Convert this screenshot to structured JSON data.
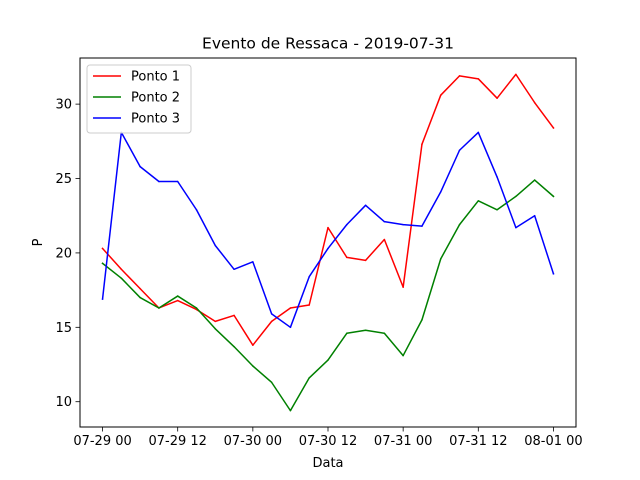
{
  "chart_data": {
    "type": "line",
    "title": "Evento de Ressaca - 2019-07-31",
    "xlabel": "Data",
    "ylabel": "P",
    "x": [
      "2019-07-29 00:00",
      "2019-07-29 03:00",
      "2019-07-29 06:00",
      "2019-07-29 09:00",
      "2019-07-29 12:00",
      "2019-07-29 15:00",
      "2019-07-29 18:00",
      "2019-07-29 21:00",
      "2019-07-30 00:00",
      "2019-07-30 03:00",
      "2019-07-30 06:00",
      "2019-07-30 09:00",
      "2019-07-30 12:00",
      "2019-07-30 15:00",
      "2019-07-30 18:00",
      "2019-07-30 21:00",
      "2019-07-31 00:00",
      "2019-07-31 03:00",
      "2019-07-31 06:00",
      "2019-07-31 09:00",
      "2019-07-31 12:00",
      "2019-07-31 15:00",
      "2019-07-31 18:00",
      "2019-07-31 21:00",
      "2019-08-01 00:00"
    ],
    "xlim": [
      "2019-07-28 20:24",
      "2019-08-01 03:36"
    ],
    "ylim": [
      8.3,
      33.1
    ],
    "xticks": [
      "2019-07-29 00:00",
      "2019-07-29 12:00",
      "2019-07-30 00:00",
      "2019-07-30 12:00",
      "2019-07-31 00:00",
      "2019-07-31 12:00",
      "2019-08-01 00:00"
    ],
    "xtick_labels": [
      "07-29 00",
      "07-29 12",
      "07-30 00",
      "07-30 12",
      "07-31 00",
      "07-31 12",
      "08-01 00"
    ],
    "yticks": [
      10,
      15,
      20,
      25,
      30
    ],
    "ytick_labels": [
      "10",
      "15",
      "20",
      "25",
      "30"
    ],
    "grid": false,
    "legend_position": "top-left",
    "series": [
      {
        "name": "Ponto 1",
        "color": "#ff0000",
        "values": [
          20.3,
          18.9,
          17.6,
          16.3,
          16.8,
          16.2,
          15.4,
          15.8,
          13.8,
          15.4,
          16.3,
          16.5,
          21.7,
          19.7,
          19.5,
          20.9,
          17.7,
          27.3,
          30.6,
          31.9,
          31.7,
          30.4,
          32.0,
          30.1,
          28.4
        ]
      },
      {
        "name": "Ponto 2",
        "color": "#008000",
        "values": [
          19.3,
          18.3,
          17.0,
          16.3,
          17.1,
          16.3,
          14.9,
          13.7,
          12.4,
          11.3,
          9.4,
          11.6,
          12.8,
          14.6,
          14.8,
          14.6,
          13.1,
          15.5,
          19.6,
          21.9,
          23.5,
          22.9,
          23.8,
          24.9,
          23.8
        ]
      },
      {
        "name": "Ponto 3",
        "color": "#0000ff",
        "values": [
          16.9,
          28.1,
          25.8,
          24.8,
          24.8,
          22.9,
          20.5,
          18.9,
          19.4,
          15.9,
          15.0,
          18.4,
          20.3,
          21.9,
          23.2,
          22.1,
          21.9,
          21.8,
          24.1,
          26.9,
          28.1,
          25.1,
          21.7,
          22.5,
          18.6
        ]
      }
    ]
  }
}
